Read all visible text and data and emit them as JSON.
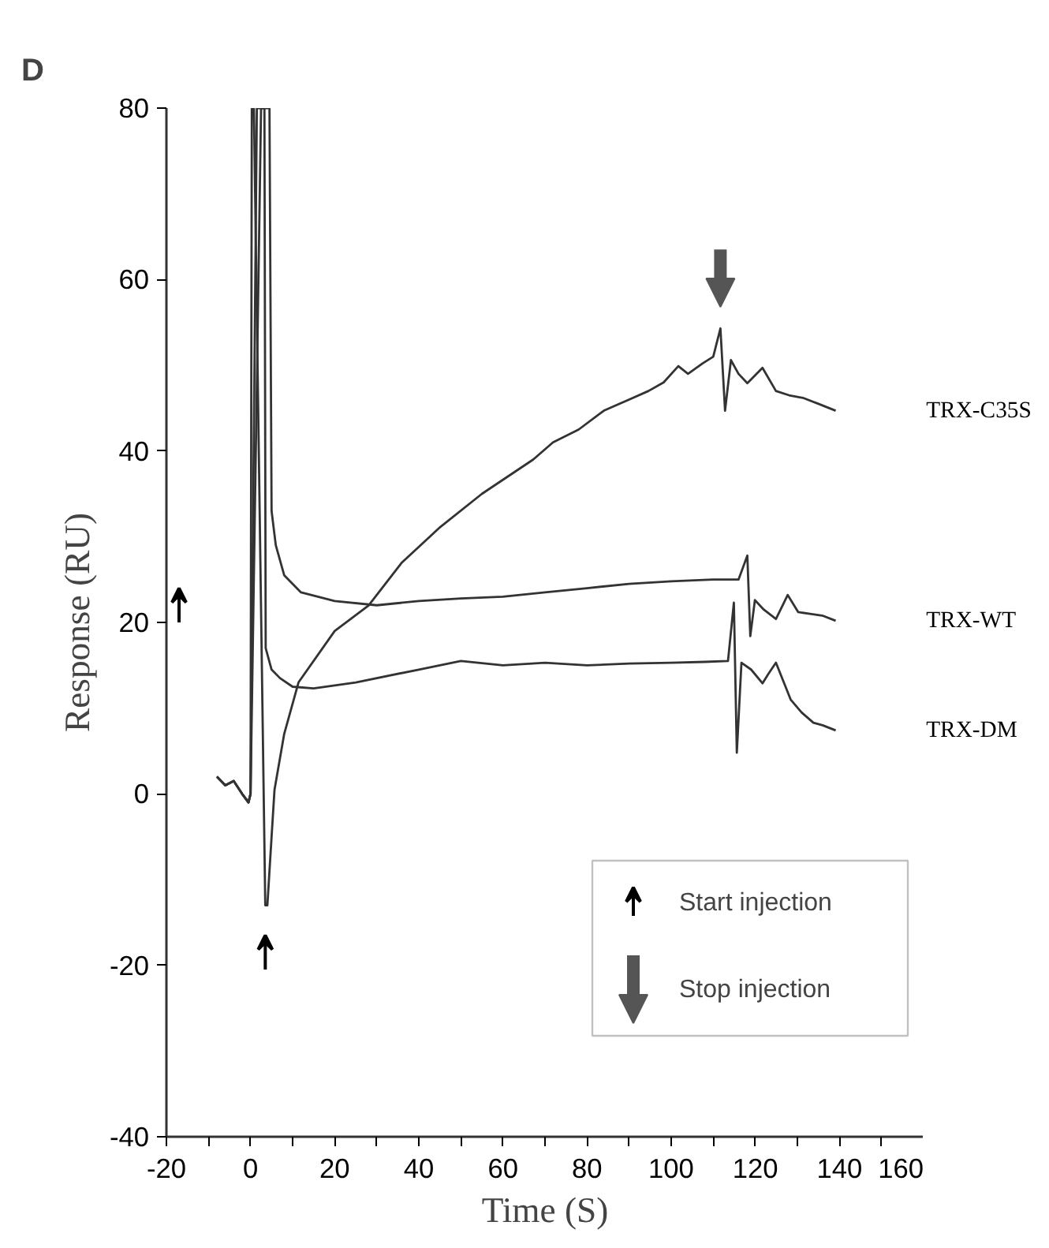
{
  "chart_data": {
    "type": "line",
    "title": "D",
    "xlabel": "Time (S)",
    "ylabel": "Response (RU)",
    "xlim": [
      -20,
      160
    ],
    "ylim": [
      -40,
      80
    ],
    "xticks": [
      -20,
      {
        "value": -10,
        "label": null
      },
      0,
      {
        "value": 10,
        "label": null
      },
      20,
      {
        "value": 30,
        "label": null
      },
      40,
      {
        "value": 50,
        "label": null
      },
      60,
      {
        "value": 70,
        "label": null
      },
      80,
      {
        "value": 90,
        "label": null
      },
      100,
      {
        "value": 110,
        "label": null
      },
      120,
      {
        "value": 130,
        "label": null
      },
      140,
      {
        "value": 150,
        "label": null
      },
      160
    ],
    "yticks": [
      -40,
      -20,
      0,
      20,
      40,
      60,
      80
    ],
    "grid": false,
    "marker": "none",
    "line_style": "solid",
    "annotations": [
      "Start injection",
      "Stop injection"
    ],
    "series": [
      {
        "name": "TRX-C35S",
        "color": "#333333",
        "x": [
          -8,
          -6,
          -4,
          -2,
          -0.5,
          0,
          0.3,
          0.8,
          3.5,
          4,
          5,
          5.7,
          8,
          11.4,
          20,
          28.1,
          36,
          44.8,
          55,
          67.2,
          71.9,
          78,
          84,
          90,
          94.6,
          98.2,
          101.7,
          104,
          107.4,
          110,
          111.7,
          112.8,
          114.2,
          116,
          118.1,
          121.7,
          124.9,
          128,
          131.3,
          135,
          139.1
        ],
        "values": [
          2,
          1,
          1.5,
          0,
          -1,
          0,
          80,
          80,
          -13,
          -13,
          -5,
          0.5,
          7,
          13,
          19,
          22,
          27,
          31,
          35,
          39,
          41,
          42.5,
          44.7,
          46,
          47,
          48,
          49.9,
          49,
          50.2,
          51,
          54.3,
          44.7,
          50.6,
          49,
          47.9,
          49.7,
          47,
          46.5,
          46.2,
          45.5,
          44.7
        ]
      },
      {
        "name": "TRX-WT",
        "color": "#333333",
        "x": [
          -8,
          -6,
          -4,
          -2,
          -0.5,
          0,
          1.5,
          4.5,
          5,
          6,
          8,
          12,
          20,
          30,
          40,
          50,
          60,
          70,
          80,
          90,
          100,
          110,
          116,
          118.1,
          118.8,
          119.9,
          122,
          124.9,
          127.7,
          130.2,
          133,
          135.9,
          139.1
        ],
        "values": [
          2,
          1,
          1.5,
          0,
          -1,
          0,
          80,
          80,
          33,
          29,
          25.5,
          23.5,
          22.5,
          22,
          22.5,
          22.8,
          23,
          23.5,
          24,
          24.5,
          24.8,
          25,
          25,
          27.8,
          18.4,
          22.6,
          21.5,
          20.4,
          23.2,
          21.2,
          21,
          20.8,
          20.2
        ]
      },
      {
        "name": "TRX-DM",
        "color": "#333333",
        "x": [
          -8,
          -6,
          -4,
          -2,
          -0.5,
          0,
          2.5,
          3.3,
          3.6,
          5,
          7,
          10,
          15,
          25,
          40,
          50,
          60,
          70,
          80,
          90,
          100,
          108,
          113.5,
          114.9,
          115.6,
          116.7,
          119,
          121.7,
          123.1,
          124.9,
          128.4,
          131,
          133.8,
          136,
          139.1
        ],
        "values": [
          2,
          1,
          1.5,
          0,
          -1,
          0,
          80,
          80,
          17,
          14.5,
          13.5,
          12.5,
          12.3,
          13,
          14.5,
          15.5,
          15,
          15.3,
          15,
          15.2,
          15.3,
          15.4,
          15.5,
          22.3,
          4.8,
          15.3,
          14.5,
          12.9,
          14,
          15.3,
          11,
          9.5,
          8.3,
          8,
          7.4
        ]
      }
    ]
  }
}
